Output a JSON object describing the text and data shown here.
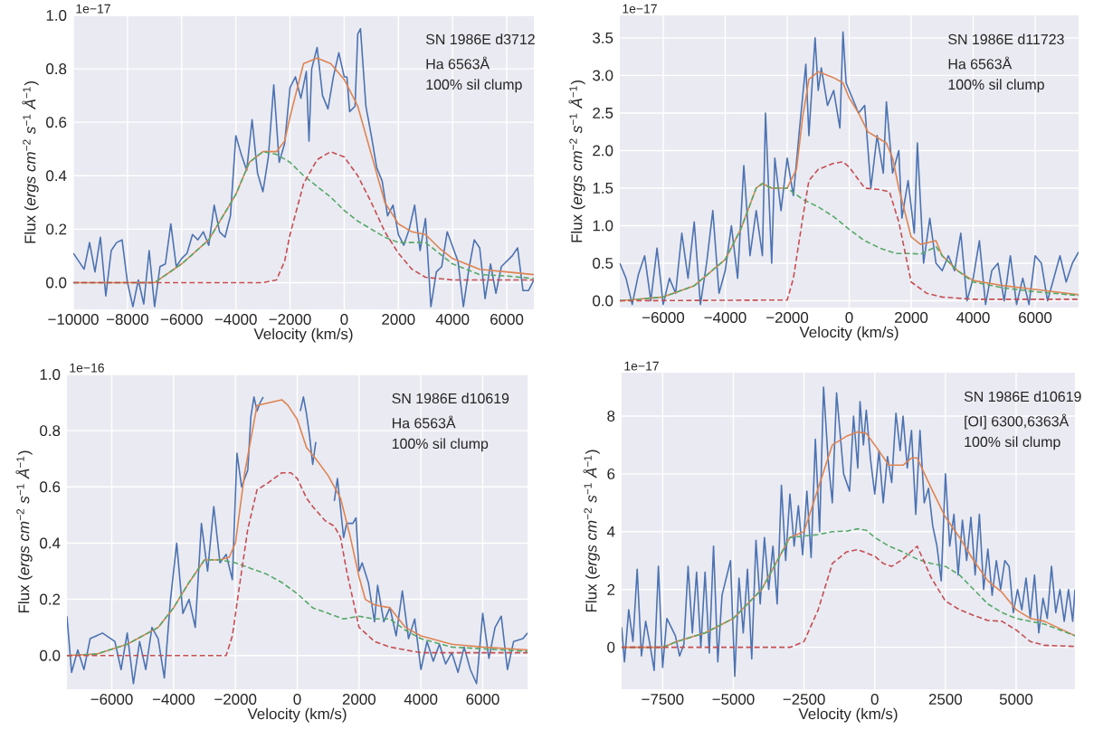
{
  "chart_data": [
    {
      "type": "line",
      "xlabel": "Velocity (km/s)",
      "ylabel": "Flux (*ergs* *cm*$^{−2}$ *s*$^{−1}$ *Å*$^{−1}$)",
      "grid": true,
      "xlim": [
        -10000,
        7000
      ],
      "ylim": [
        -0.1,
        1.0
      ],
      "xticks": [
        {
          "value": -10000,
          "label": "−10000"
        },
        {
          "value": -8000,
          "label": "−8000"
        },
        {
          "value": -6000,
          "label": "−6000"
        },
        {
          "value": -4000,
          "label": "−4000"
        },
        {
          "value": -2000,
          "label": "−2000"
        },
        0,
        2000,
        4000,
        6000
      ],
      "yticks": [
        {
          "value": 0,
          "label": "0.0"
        },
        0.2,
        0.4,
        0.6,
        0.8,
        {
          "value": 1,
          "label": "1.0"
        }
      ],
      "annotations": [
        "1e−17",
        "SN 1986E d3712",
        "Ha 6563Å",
        "100% sil clump"
      ],
      "series": [
        {
          "color": "#4c72b0",
          "line_style": "solid",
          "x": [
            -10000,
            -9600,
            -9400,
            -9200,
            -9000,
            -8800,
            -8600,
            -8400,
            -8200,
            -8000,
            -7800,
            -7600,
            -7400,
            -7200,
            -7000,
            -6800,
            -6600,
            -6400,
            -6200,
            -6000,
            -5800,
            -5600,
            -5400,
            -5200,
            -5000,
            -4800,
            -4600,
            -4400,
            -4200,
            -4000,
            -3800,
            -3600,
            -3400,
            -3200,
            -3000,
            -2800,
            -2600,
            -2400,
            -2200,
            -2000,
            -1800,
            -1600,
            -1400,
            -1300,
            -1200,
            -1000,
            -800,
            -600,
            -400,
            -200,
            0,
            100,
            200,
            400,
            500,
            600,
            800,
            1000,
            1200,
            1400,
            1600,
            1800,
            2000,
            2200,
            2400,
            2600,
            2800,
            3000,
            3200,
            3400,
            3600,
            3800,
            4200,
            4400,
            4600,
            4800,
            5000,
            5200,
            5400,
            5600,
            5800,
            6200,
            6400,
            6600,
            6800,
            7000
          ],
          "values": [
            0.11,
            0.05,
            0.15,
            0.04,
            0.17,
            -0.05,
            0.12,
            0.15,
            0.16,
            0.0,
            -0.09,
            0.01,
            -0.08,
            0.12,
            -0.09,
            0.06,
            0.07,
            0.22,
            0.06,
            0.09,
            0.11,
            0.18,
            0.16,
            0.19,
            0.14,
            0.29,
            0.19,
            0.17,
            0.25,
            0.55,
            0.48,
            0.42,
            0.61,
            0.41,
            0.34,
            0.47,
            0.74,
            0.45,
            0.52,
            0.73,
            0.77,
            0.69,
            0.79,
            0.53,
            0.8,
            0.88,
            0.7,
            0.65,
            0.77,
            0.86,
            0.77,
            0.77,
            0.64,
            0.66,
            0.93,
            0.95,
            0.66,
            0.55,
            0.43,
            0.38,
            0.25,
            0.29,
            0.18,
            0.14,
            0.2,
            0.29,
            0.12,
            0.24,
            -0.09,
            0.04,
            0.06,
            0.19,
            0.08,
            -0.09,
            0.05,
            0.16,
            0.13,
            -0.06,
            0.07,
            -0.04,
            0.06,
            0.1,
            0.13,
            -0.03,
            -0.03,
            0.01
          ]
        },
        {
          "color": "#dd8452",
          "line_style": "solid",
          "x": [
            -10000,
            -7000,
            -6000,
            -5000,
            -4000,
            -3500,
            -3000,
            -2500,
            -2200,
            -2000,
            -1500,
            -1000,
            -500,
            0,
            500,
            1000,
            1500,
            2000,
            2500,
            3000,
            3500,
            4000,
            5000,
            6000,
            7000
          ],
          "values": [
            0,
            0,
            0.07,
            0.16,
            0.33,
            0.45,
            0.49,
            0.49,
            0.53,
            0.62,
            0.82,
            0.84,
            0.82,
            0.76,
            0.66,
            0.48,
            0.3,
            0.22,
            0.19,
            0.18,
            0.13,
            0.09,
            0.05,
            0.04,
            0.03
          ]
        },
        {
          "color": "#55a868",
          "line_style": "dashed",
          "x": [
            -10000,
            -7000,
            -6000,
            -5000,
            -4000,
            -3500,
            -3000,
            -2500,
            -2000,
            -1500,
            -1000,
            -500,
            0,
            500,
            1000,
            1500,
            2000,
            2500,
            3000,
            3500,
            4000,
            5000,
            6000,
            7000
          ],
          "values": [
            0,
            0,
            0.07,
            0.16,
            0.33,
            0.45,
            0.49,
            0.48,
            0.45,
            0.4,
            0.36,
            0.32,
            0.27,
            0.23,
            0.2,
            0.17,
            0.15,
            0.15,
            0.15,
            0.11,
            0.07,
            0.03,
            0.025,
            0.015
          ]
        },
        {
          "color": "#c44e52",
          "line_style": "dashed",
          "x": [
            -10000,
            -3000,
            -2500,
            -2200,
            -2000,
            -1500,
            -1000,
            -500,
            0,
            500,
            1000,
            1500,
            2000,
            2500,
            3000,
            4000,
            7000
          ],
          "values": [
            0,
            0,
            0.01,
            0.08,
            0.18,
            0.37,
            0.46,
            0.49,
            0.47,
            0.4,
            0.3,
            0.19,
            0.11,
            0.05,
            0.02,
            0.01,
            0.01
          ]
        }
      ]
    },
    {
      "type": "line",
      "xlabel": "Velocity (km/s)",
      "ylabel": "Flux (*ergs* *cm*$^{−2}$ *s*$^{−1}$ *Å*$^{−1}$)",
      "grid": true,
      "xlim": [
        -7400,
        7400
      ],
      "ylim": [
        -0.09,
        3.8
      ],
      "xticks": [
        {
          "value": -6000,
          "label": "−6000"
        },
        {
          "value": -4000,
          "label": "−4000"
        },
        {
          "value": -2000,
          "label": "−2000"
        },
        0,
        2000,
        4000,
        6000
      ],
      "yticks": [
        {
          "value": 0,
          "label": "0.0"
        },
        0.5,
        {
          "value": 1,
          "label": "1.0"
        },
        1.5,
        {
          "value": 2,
          "label": "2.0"
        },
        2.5,
        {
          "value": 3,
          "label": "3.0"
        },
        3.5
      ],
      "annotations": [
        "1e−17",
        "SN 1986E d11723",
        "Ha 6563Å",
        "100% sil clump"
      ],
      "series": [
        {
          "color": "#4c72b0",
          "line_style": "solid",
          "x": [
            -7400,
            -7200,
            -7000,
            -6800,
            -6600,
            -6400,
            -6200,
            -6000,
            -5800,
            -5600,
            -5400,
            -5200,
            -5000,
            -4800,
            -4600,
            -4400,
            -4200,
            -4000,
            -3800,
            -3600,
            -3400,
            -3200,
            -3000,
            -2800,
            -2700,
            -2500,
            -2400,
            -2200,
            -2000,
            -1800,
            -1600,
            -1400,
            -1300,
            -1100,
            -1000,
            -900,
            -700,
            -500,
            -300,
            -200,
            -100,
            100,
            300,
            500,
            700,
            900,
            1100,
            1200,
            1400,
            1600,
            1700,
            1900,
            2100,
            2200,
            2400,
            2600,
            2800,
            3000,
            3200,
            3400,
            3600,
            3800,
            4000,
            4200,
            4400,
            4600,
            4800,
            5000,
            5200,
            5400,
            5600,
            5800,
            6000,
            6200,
            6400,
            6600,
            6800,
            7000,
            7200,
            7400
          ],
          "values": [
            0.5,
            0.3,
            -0.05,
            0.35,
            0.6,
            0.0,
            0.7,
            -0.05,
            0.3,
            0.1,
            0.9,
            0.3,
            1.05,
            -0.05,
            0.5,
            1.2,
            0.1,
            0.4,
            1.0,
            0.3,
            1.8,
            0.6,
            1.2,
            0.6,
            2.5,
            0.5,
            1.9,
            1.2,
            1.9,
            1.4,
            2.3,
            3.15,
            2.2,
            3.5,
            2.8,
            3.1,
            2.6,
            2.8,
            2.3,
            3.58,
            2.9,
            2.7,
            2.5,
            2.6,
            1.5,
            2.2,
            1.7,
            2.65,
            1.7,
            2.0,
            1.1,
            1.6,
            0.9,
            2.1,
            0.5,
            1.1,
            0.5,
            0.4,
            0.6,
            0.4,
            0.9,
            0.0,
            0.3,
            0.8,
            -0.05,
            0.4,
            0.5,
            0.0,
            0.6,
            -0.05,
            0.3,
            -0.05,
            0.6,
            0.5,
            0.0,
            0.3,
            0.6,
            0.25,
            0.5,
            0.65
          ]
        },
        {
          "color": "#dd8452",
          "line_style": "solid",
          "x": [
            -7400,
            -6000,
            -5000,
            -4000,
            -3500,
            -3000,
            -2800,
            -2500,
            -2000,
            -1700,
            -1500,
            -1300,
            -1000,
            -500,
            -200,
            0,
            300,
            600,
            1000,
            1200,
            1400,
            1600,
            2000,
            2300,
            2800,
            3000,
            3500,
            4000,
            5000,
            6000,
            7400
          ],
          "values": [
            0,
            0.05,
            0.2,
            0.55,
            0.95,
            1.5,
            1.56,
            1.5,
            1.5,
            1.75,
            2.45,
            2.95,
            3.05,
            2.97,
            2.9,
            2.7,
            2.5,
            2.25,
            2.15,
            2.1,
            1.9,
            1.5,
            0.85,
            0.75,
            0.8,
            0.6,
            0.4,
            0.27,
            0.2,
            0.15,
            0.08
          ]
        },
        {
          "color": "#55a868",
          "line_style": "dashed",
          "x": [
            -7400,
            -6000,
            -5000,
            -4000,
            -3500,
            -3000,
            -2800,
            -2500,
            -2000,
            -1500,
            -1000,
            -500,
            0,
            500,
            1000,
            1500,
            2000,
            2300,
            2800,
            3000,
            3500,
            4000,
            5000,
            6000,
            7400
          ],
          "values": [
            0,
            0.05,
            0.2,
            0.55,
            0.95,
            1.5,
            1.56,
            1.5,
            1.5,
            1.35,
            1.25,
            1.12,
            0.95,
            0.8,
            0.7,
            0.63,
            0.63,
            0.62,
            0.72,
            0.6,
            0.4,
            0.25,
            0.17,
            0.12,
            0.07
          ]
        },
        {
          "color": "#c44e52",
          "line_style": "dashed",
          "x": [
            -7400,
            -2000,
            -1800,
            -1500,
            -1300,
            -1000,
            -500,
            -200,
            0,
            500,
            1000,
            1300,
            1600,
            2000,
            2500,
            3000,
            4000,
            7400
          ],
          "values": [
            0,
            0.01,
            0.3,
            1.1,
            1.6,
            1.75,
            1.83,
            1.85,
            1.78,
            1.5,
            1.48,
            1.45,
            1.05,
            0.25,
            0.1,
            0.05,
            0.02,
            0.02
          ]
        }
      ]
    },
    {
      "type": "line",
      "xlabel": "Velocity (km/s)",
      "ylabel": "Flux (*ergs* *cm*$^{−2}$ *s*$^{−1}$ *Å*$^{−1}$)",
      "grid": true,
      "xlim": [
        -7450,
        7450
      ],
      "ylim": [
        -0.12,
        1.0
      ],
      "xticks": [
        {
          "value": -6000,
          "label": "−6000"
        },
        {
          "value": -4000,
          "label": "−4000"
        },
        {
          "value": -2000,
          "label": "−2000"
        },
        0,
        2000,
        4000,
        6000
      ],
      "yticks": [
        {
          "value": 0,
          "label": "0.0"
        },
        0.2,
        0.4,
        0.6,
        0.8,
        {
          "value": 1,
          "label": "1.0"
        }
      ],
      "annotations": [
        "1e−16",
        "SN 1986E d10619",
        "Ha 6563Å",
        "100% sil clump"
      ],
      "series": [
        {
          "color": "#4c72b0",
          "line_style": "solid",
          "x": [
            -7450,
            -7300,
            -7100,
            -6900,
            -6700,
            -6500,
            -6300,
            -5900,
            -5700,
            -5500,
            -5300,
            -5100,
            -4900,
            -4700,
            -4500,
            -4300,
            -4100,
            -3900,
            -3700,
            -3500,
            -3300,
            -3100,
            -2900,
            -2700,
            -2500,
            -2300,
            -2100,
            -1950,
            -1800,
            -1600,
            -1500,
            -1400,
            -1300,
            -1200,
            -1100,
            -500,
            100,
            200,
            300,
            400,
            500,
            600,
            900,
            1200,
            1300,
            1500,
            1600,
            1800,
            1900,
            2000,
            2100,
            2300,
            2500,
            2600,
            2800,
            3000,
            3200,
            3400,
            3600,
            3800,
            4000,
            4200,
            4400,
            4600,
            4800,
            5000,
            5200,
            5400,
            5600,
            5800,
            6000,
            6200,
            6400,
            6600,
            6800,
            7000,
            7300,
            7450
          ],
          "values": [
            0.14,
            -0.06,
            0.02,
            -0.05,
            0.06,
            0.07,
            0.08,
            0.05,
            -0.05,
            0.08,
            -0.1,
            0.05,
            -0.05,
            0.1,
            0.06,
            -0.08,
            0.2,
            0.4,
            0.15,
            0.2,
            0.1,
            0.47,
            0.3,
            0.53,
            0.33,
            0.36,
            0.27,
            0.72,
            0.6,
            0.66,
            0.85,
            0.92,
            0.87,
            0.9,
            0.92,
            null,
            0.87,
            0.92,
            0.86,
            0.78,
            0.68,
            0.76,
            null,
            0.55,
            0.63,
            0.42,
            0.47,
            0.47,
            0.49,
            0.3,
            0.33,
            0.26,
            0.12,
            0.25,
            0.12,
            0.17,
            0.07,
            0.23,
            0.06,
            0.13,
            -0.05,
            0.05,
            -0.02,
            0.04,
            -0.03,
            0.01,
            -0.06,
            0.03,
            -0.05,
            -0.1,
            0.15,
            -0.01,
            0.1,
            0.14,
            -0.05,
            0.05,
            0.06,
            0.08
          ]
        },
        {
          "color": "#dd8452",
          "line_style": "solid",
          "x": [
            -7450,
            -6500,
            -5500,
            -4500,
            -4000,
            -3500,
            -3000,
            -2500,
            -2200,
            -2000,
            -1700,
            -1300,
            -500,
            -300,
            0,
            300,
            600,
            1000,
            1400,
            1700,
            2000,
            2200,
            2500,
            3000,
            3500,
            4000,
            5000,
            6000,
            7450
          ],
          "values": [
            0,
            0.005,
            0.04,
            0.1,
            0.17,
            0.26,
            0.34,
            0.34,
            0.35,
            0.4,
            0.65,
            0.89,
            0.91,
            0.89,
            0.84,
            0.74,
            0.7,
            0.64,
            0.56,
            0.43,
            0.28,
            0.2,
            0.18,
            0.17,
            0.1,
            0.07,
            0.04,
            0.03,
            0.02
          ]
        },
        {
          "color": "#55a868",
          "line_style": "dashed",
          "x": [
            -7450,
            -6500,
            -5500,
            -4500,
            -4000,
            -3500,
            -3000,
            -2500,
            -2000,
            -1500,
            -1000,
            -500,
            0,
            500,
            1000,
            1500,
            2000,
            2500,
            3000,
            3500,
            4000,
            5000,
            7450
          ],
          "values": [
            0,
            0.005,
            0.04,
            0.1,
            0.17,
            0.26,
            0.34,
            0.34,
            0.33,
            0.31,
            0.29,
            0.26,
            0.22,
            0.17,
            0.15,
            0.13,
            0.14,
            0.13,
            0.13,
            0.09,
            0.06,
            0.03,
            0.015
          ]
        },
        {
          "color": "#c44e52",
          "line_style": "dashed",
          "x": [
            -7450,
            -2300,
            -2100,
            -1800,
            -1600,
            -1300,
            -1000,
            -500,
            -200,
            0,
            300,
            500,
            900,
            1200,
            1400,
            1600,
            2000,
            2500,
            3000,
            4000,
            7450
          ],
          "values": [
            0,
            0,
            0.07,
            0.3,
            0.45,
            0.59,
            0.61,
            0.65,
            0.65,
            0.63,
            0.56,
            0.53,
            0.48,
            0.46,
            0.42,
            0.3,
            0.1,
            0.05,
            0.03,
            0.01,
            0.01
          ]
        }
      ]
    },
    {
      "type": "line",
      "xlabel": "Velocity (km/s)",
      "ylabel": "Flux (*ergs* *cm*$^{−2}$ *s*$^{−1}$ *Å*$^{−1}$)",
      "grid": true,
      "xlim": [
        -8950,
        7080
      ],
      "ylim": [
        -1.45,
        9.5
      ],
      "xticks": [
        {
          "value": -7500,
          "label": "−7500"
        },
        {
          "value": -5000,
          "label": "−5000"
        },
        {
          "value": -2500,
          "label": "−2500"
        },
        0,
        2500,
        5000
      ],
      "yticks": [
        0,
        2,
        4,
        6,
        8
      ],
      "annotations": [
        "1e−17",
        "SN 1986E d10619",
        "[OI] 6300,6363Å",
        "100% sil clump"
      ],
      "series": [
        {
          "color": "#4c72b0",
          "line_style": "solid",
          "x": [
            -8950,
            -8850,
            -8700,
            -8550,
            -8400,
            -8250,
            -8100,
            -7950,
            -7800,
            -7650,
            -7500,
            -7350,
            -7050,
            -6900,
            -6750,
            -6600,
            -6450,
            -6300,
            -6150,
            -6000,
            -5850,
            -5700,
            -5550,
            -5400,
            -5100,
            -4950,
            -4800,
            -4650,
            -4500,
            -4350,
            -4200,
            -4050,
            -3900,
            -3750,
            -3600,
            -3450,
            -3300,
            -3150,
            -3000,
            -2850,
            -2700,
            -2550,
            -2400,
            -2250,
            -2100,
            -1950,
            -1810,
            -1650,
            -1500,
            -1350,
            -1100,
            -890,
            -750,
            -600,
            -520,
            -400,
            -300,
            -150,
            0,
            150,
            300,
            450,
            600,
            750,
            900,
            1000,
            1150,
            1300,
            1450,
            1600,
            1750,
            1900,
            2050,
            2200,
            2350,
            2500,
            2650,
            2800,
            2950,
            3100,
            3250,
            3400,
            3550,
            3700,
            3850,
            4000,
            4150,
            4300,
            4450,
            4600,
            4750,
            4900,
            5050,
            5200,
            5350,
            5500,
            5650,
            5800,
            5950,
            6100,
            6250,
            6400,
            6550,
            6700,
            6850,
            7000,
            7080
          ],
          "values": [
            0.7,
            -0.5,
            1.3,
            0.2,
            2.7,
            -0.3,
            0.9,
            0.1,
            -0.8,
            2.8,
            -0.7,
            1.0,
            0.4,
            -0.3,
            0.1,
            2.8,
            0.5,
            2.6,
            0.0,
            2.6,
            -0.2,
            3.5,
            -0.5,
            1.8,
            3.0,
            -1.0,
            2.4,
            0.5,
            2.7,
            -0.4,
            3.7,
            1.5,
            3.8,
            2.0,
            3.5,
            1.5,
            5.6,
            3.0,
            5.3,
            3.5,
            4.9,
            3.2,
            5.4,
            3.1,
            7.2,
            4.0,
            9.0,
            6.5,
            5.0,
            8.8,
            6.0,
            5.4,
            8.0,
            6.2,
            8.5,
            7.0,
            8.2,
            6.5,
            5.3,
            6.8,
            5.0,
            6.6,
            5.7,
            8.1,
            6.8,
            8.0,
            6.2,
            7.5,
            4.6,
            7.5,
            5.0,
            5.5,
            4.2,
            3.5,
            2.3,
            6.0,
            3.5,
            4.6,
            2.5,
            4.4,
            3.0,
            4.5,
            2.5,
            4.6,
            2.0,
            3.4,
            1.8,
            3.0,
            2.0,
            3.0,
            2.8,
            1.2,
            2.0,
            1.3,
            2.4,
            1.0,
            2.5,
            0.5,
            1.7,
            1.0,
            2.8,
            1.2,
            2.0,
            0.9,
            2.0,
            0.9,
            2.0
          ]
        },
        {
          "color": "#dd8452",
          "line_style": "solid",
          "x": [
            -8950,
            -7500,
            -7000,
            -6000,
            -5000,
            -4000,
            -3500,
            -3000,
            -2500,
            -2000,
            -1500,
            -1000,
            -600,
            -300,
            0,
            500,
            1000,
            1300,
            1500,
            2000,
            2500,
            3000,
            3500,
            4000,
            4500,
            5000,
            5500,
            6000,
            7080
          ],
          "values": [
            0,
            0,
            0.2,
            0.5,
            1.0,
            2.0,
            2.9,
            3.8,
            4.0,
            5.5,
            7.0,
            7.3,
            7.45,
            7.4,
            7.0,
            6.3,
            6.3,
            6.55,
            6.55,
            5.5,
            4.5,
            3.8,
            3.0,
            2.3,
            1.9,
            1.3,
            1.0,
            0.9,
            0.4
          ]
        },
        {
          "color": "#55a868",
          "line_style": "dashed",
          "x": [
            -8950,
            -7500,
            -7000,
            -6000,
            -5000,
            -4000,
            -3500,
            -3000,
            -2500,
            -2000,
            -1500,
            -1000,
            -600,
            -300,
            0,
            500,
            1000,
            1500,
            2000,
            2500,
            3000,
            3500,
            4000,
            4500,
            5000,
            6000,
            7080
          ],
          "values": [
            0,
            0,
            0.2,
            0.5,
            1.0,
            2.0,
            2.9,
            3.8,
            3.85,
            3.9,
            4.0,
            4.02,
            4.1,
            4.05,
            3.8,
            3.5,
            3.3,
            3.05,
            2.9,
            2.8,
            2.5,
            2.0,
            1.5,
            1.2,
            1.0,
            0.8,
            0.4
          ]
        },
        {
          "color": "#c44e52",
          "line_style": "dashed",
          "x": [
            -8950,
            -3000,
            -2500,
            -2000,
            -1500,
            -1000,
            -600,
            0,
            300,
            600,
            1000,
            1500,
            2000,
            2500,
            3000,
            3500,
            4000,
            4500,
            5000,
            5500,
            6000,
            7080
          ],
          "values": [
            0,
            0,
            0.2,
            1.3,
            2.9,
            3.3,
            3.38,
            3.15,
            2.9,
            2.8,
            3.05,
            3.5,
            2.4,
            1.6,
            1.3,
            1.1,
            0.93,
            0.9,
            0.6,
            0.2,
            0.07,
            0.03
          ]
        }
      ]
    }
  ]
}
